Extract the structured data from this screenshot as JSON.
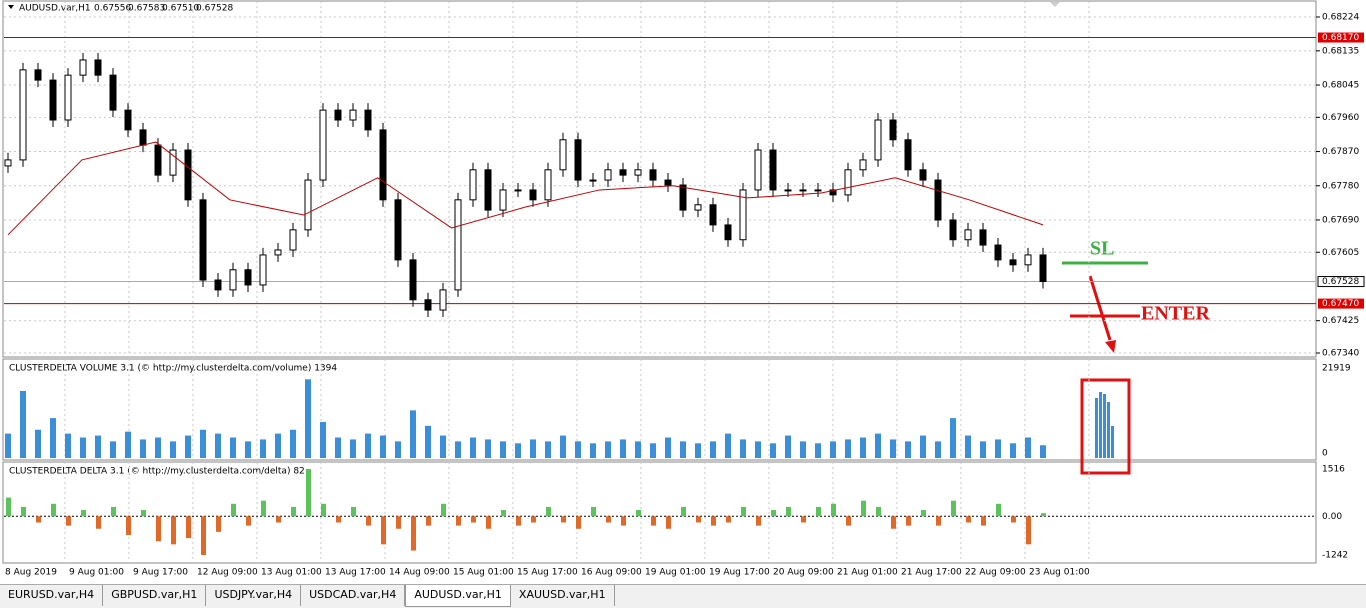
{
  "header": {
    "symbol": "AUDUSD.var,H1",
    "quote": [
      "0.67556",
      "0.67583",
      "0.67510",
      "0.67528"
    ]
  },
  "price_axis": {
    "ticks": [
      {
        "value": 0.68224,
        "label": "0.68224"
      },
      {
        "value": 0.68135,
        "label": "0.68135"
      },
      {
        "value": 0.68045,
        "label": "0.68045"
      },
      {
        "value": 0.6796,
        "label": "0.67960"
      },
      {
        "value": 0.6787,
        "label": "0.67870"
      },
      {
        "value": 0.6778,
        "label": "0.67780"
      },
      {
        "value": 0.6769,
        "label": "0.67690"
      },
      {
        "value": 0.67605,
        "label": "0.67605"
      },
      {
        "value": 0.67425,
        "label": "0.67425"
      },
      {
        "value": 0.6734,
        "label": "0.67340"
      }
    ],
    "levels": [
      {
        "value": 0.6817,
        "label": "0.68170"
      },
      {
        "value": 0.6747,
        "label": "0.67470"
      }
    ],
    "current": {
      "value": 0.67528,
      "label": "0.67528"
    }
  },
  "closes": [
    0.67848,
    0.68085,
    0.68058,
    0.67953,
    0.68071,
    0.68111,
    0.68071,
    0.67979,
    0.67927,
    0.67887,
    0.67808,
    0.67874,
    0.67743,
    0.67532,
    0.67506,
    0.67559,
    0.67519,
    0.67598,
    0.67611,
    0.67664,
    0.67795,
    0.67979,
    0.67953,
    0.67979,
    0.67927,
    0.67743,
    0.67585,
    0.6748,
    0.67453,
    0.67506,
    0.67743,
    0.67822,
    0.67716,
    0.67769,
    0.67769,
    0.67743,
    0.67822,
    0.67901,
    0.67795,
    0.67795,
    0.67822,
    0.67808,
    0.67822,
    0.67795,
    0.67782,
    0.67716,
    0.6773,
    0.67677,
    0.67638,
    0.67769,
    0.67874,
    0.67769,
    0.67769,
    0.67769,
    0.67769,
    0.67756,
    0.67822,
    0.67848,
    0.67953,
    0.67901,
    0.67822,
    0.67795,
    0.6769,
    0.67638,
    0.67664,
    0.67624,
    0.67585,
    0.67572,
    0.67598,
    0.67528
  ],
  "moving_average": [
    0.67651,
    0.67848,
    0.67895,
    0.67743,
    0.67703,
    0.67801,
    0.67669,
    0.67724,
    0.67769,
    0.6778,
    0.67748,
    0.67761,
    0.67801,
    0.67743,
    0.67677
  ],
  "volume": {
    "title": "CLUSTERDELTA VOLUME 3.1 (© http://my.clusterdelta.com/volume) 1394",
    "ticks": [
      21919,
      0
    ],
    "values": [
      5000,
      16000,
      6000,
      9000,
      5000,
      4000,
      4500,
      3000,
      5500,
      3500,
      4000,
      3000,
      4500,
      6000,
      5000,
      4000,
      3000,
      3500,
      5000,
      6000,
      19000,
      8000,
      4000,
      3500,
      5000,
      4500,
      3000,
      11000,
      7000,
      4500,
      3000,
      4000,
      3500,
      3000,
      2500,
      3500,
      3000,
      4500,
      3000,
      2500,
      3000,
      3500,
      3000,
      2500,
      4000,
      3000,
      2500,
      3000,
      5000,
      3500,
      3000,
      2500,
      4500,
      3000,
      2500,
      3000,
      3500,
      4000,
      5000,
      3500,
      3000,
      4500,
      3000,
      9000,
      4500,
      3000,
      3500,
      2500,
      4000,
      2000
    ]
  },
  "delta": {
    "title": "CLUSTERDELTA DELTA 3.1 (© http://my.clusterdelta.com/delta) 82",
    "ticks": [
      1516,
      {
        "value": 0,
        "label": "0.00"
      },
      -1242
    ],
    "values": [
      600,
      300,
      -200,
      400,
      -300,
      200,
      -400,
      300,
      -600,
      200,
      -800,
      -900,
      -700,
      -1242,
      -500,
      400,
      -300,
      500,
      -200,
      300,
      1516,
      400,
      -200,
      300,
      -300,
      -900,
      -400,
      -1100,
      -300,
      400,
      -300,
      -200,
      -400,
      200,
      -300,
      -200,
      300,
      -200,
      -400,
      300,
      -200,
      -300,
      200,
      -300,
      -400,
      300,
      -200,
      -300,
      -200,
      300,
      -300,
      200,
      300,
      -200,
      300,
      400,
      -300,
      500,
      300,
      -400,
      -300,
      200,
      -300,
      500,
      -200,
      -300,
      400,
      -200,
      -900,
      100
    ]
  },
  "dates": [
    "8 Aug 2019",
    "9 Aug 01:00",
    "9 Aug 17:00",
    "12 Aug 09:00",
    "13 Aug 01:00",
    "13 Aug 17:00",
    "14 Aug 09:00",
    "15 Aug 01:00",
    "15 Aug 17:00",
    "16 Aug 09:00",
    "19 Aug 01:00",
    "19 Aug 17:00",
    "20 Aug 09:00",
    "21 Aug 01:00",
    "21 Aug 17:00",
    "22 Aug 09:00",
    "23 Aug 01:00"
  ],
  "annotations": {
    "sl": "SL",
    "enter": "ENTER"
  },
  "tabs": [
    "EURUSD.var,H4",
    "GBPUSD.var,H1",
    "USDJPY.var,H4",
    "USDCAD.var,H4",
    "AUDUSD.var,H1",
    "XAUUSD.var,H1"
  ],
  "active_tab": 4
}
